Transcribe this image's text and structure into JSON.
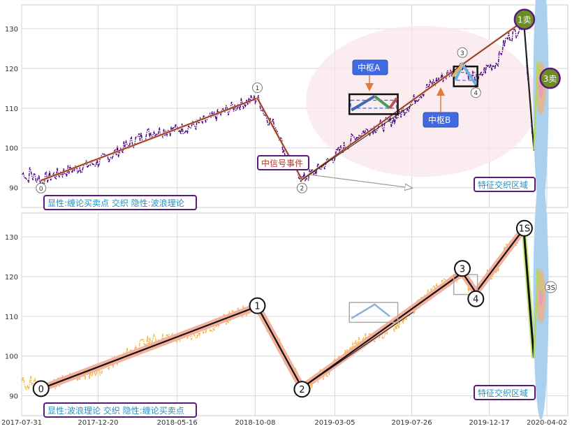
{
  "chart_data": [
    {
      "type": "line",
      "panel": "top",
      "caption": "显性:缠论买卖点 交织 隐性:波浪理论",
      "ylim": [
        85,
        136
      ],
      "yticks": [
        90,
        100,
        110,
        120,
        130
      ],
      "x_dates": [
        "2017-07-31",
        "2017-12-20",
        "2018-05-16",
        "2018-10-08",
        "2019-03-05",
        "2019-07-26",
        "2019-12-17",
        "2020-04-02"
      ],
      "price_series": {
        "name": "",
        "color": "#4b0082",
        "style": "dash-dot"
      },
      "key_points": [
        {
          "label": "0",
          "date": "2017-09-05",
          "value": 91.8
        },
        {
          "label": "1",
          "date": "2018-10-12",
          "value": 112.5
        },
        {
          "label": "2",
          "date": "2019-01-03",
          "value": 92.0
        },
        {
          "label": "3",
          "date": "2019-10-28",
          "value": 121.0
        },
        {
          "label": "4",
          "date": "2019-11-22",
          "value": 116.0
        },
        {
          "label": "1卖",
          "date": "2020-02-19",
          "value": 132.0
        },
        {
          "label": "3卖",
          "date": "2020-03-26",
          "value": 117.0
        }
      ],
      "annotations": {
        "zhongshu_a": "中枢A",
        "zhongshu_b": "中枢B",
        "signal": "中信号事件",
        "zone": "特征交织区域"
      },
      "grid": true
    },
    {
      "type": "line",
      "panel": "bottom",
      "caption": "显性:波浪理论 交织 隐性:缠论买卖点",
      "ylim": [
        85,
        136
      ],
      "yticks": [
        90,
        100,
        110,
        120,
        130
      ],
      "x_dates": [
        "2017-07-31",
        "2017-12-20",
        "2018-05-16",
        "2018-10-08",
        "2019-03-05",
        "2019-07-26",
        "2019-12-17",
        "2020-04-02"
      ],
      "price_series": {
        "name": "",
        "color": "#f0b43c",
        "style": "dash-dot"
      },
      "wave_points": [
        {
          "label": "0",
          "date": "2017-09-05",
          "value": 91.8
        },
        {
          "label": "1",
          "date": "2018-10-12",
          "value": 112.5
        },
        {
          "label": "2",
          "date": "2019-01-03",
          "value": 92.0
        },
        {
          "label": "3",
          "date": "2019-10-28",
          "value": 121.0
        },
        {
          "label": "4",
          "date": "2019-11-22",
          "value": 116.0
        },
        {
          "label": "1S",
          "date": "2020-02-19",
          "value": 132.0
        },
        {
          "label": "3S",
          "date": "2020-03-26",
          "value": 117.0
        }
      ],
      "annotations": {
        "zone": "特征交织区域"
      },
      "grid": true
    }
  ],
  "colors": {
    "purple_border": "#5a1a7a",
    "caption_text": "#2a8fc0",
    "signal_text": "#b03a2e",
    "zs_box": "#4169e1",
    "sell_circle": "#6b8e23",
    "wave_band": "#f4b09a"
  }
}
